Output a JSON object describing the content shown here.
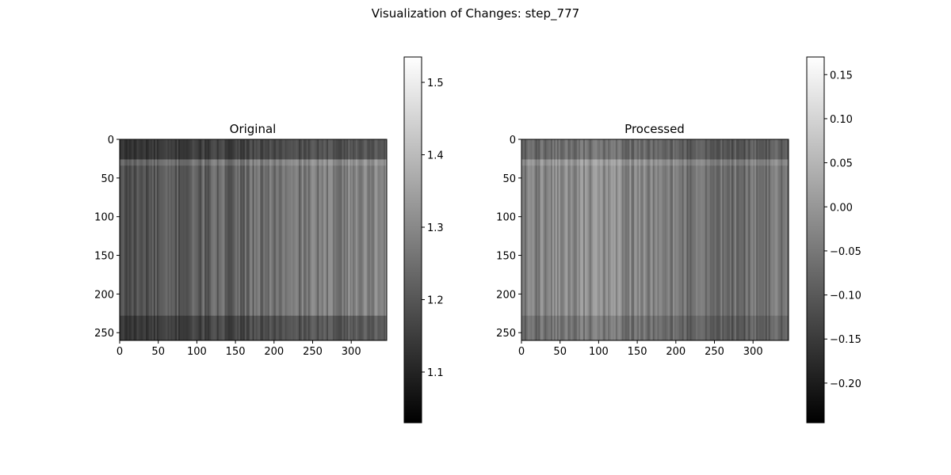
{
  "figure": {
    "title": "Visualization of Changes: step_777"
  },
  "chart_data": [
    {
      "type": "heatmap",
      "title": "Original",
      "colormap": "gray",
      "image_width": 346,
      "image_height": 260,
      "x_ticks": [
        0,
        50,
        100,
        150,
        200,
        250,
        300
      ],
      "y_ticks": [
        0,
        50,
        100,
        150,
        200,
        250
      ],
      "colorbar": {
        "min": 1.03,
        "max": 1.535,
        "ticks": [
          1.1,
          1.2,
          1.3,
          1.4,
          1.5
        ],
        "tick_labels": [
          "1.1",
          "1.2",
          "1.3",
          "1.4",
          "1.5"
        ]
      }
    },
    {
      "type": "heatmap",
      "title": "Processed",
      "colormap": "gray",
      "image_width": 346,
      "image_height": 260,
      "x_ticks": [
        0,
        50,
        100,
        150,
        200,
        250,
        300
      ],
      "y_ticks": [
        0,
        50,
        100,
        150,
        200,
        250
      ],
      "colorbar": {
        "min": -0.245,
        "max": 0.17,
        "ticks": [
          -0.2,
          -0.15,
          -0.1,
          -0.05,
          0.0,
          0.05,
          0.1,
          0.15
        ],
        "tick_labels": [
          "−0.20",
          "−0.15",
          "−0.10",
          "−0.05",
          "0.00",
          "0.05",
          "0.10",
          "0.15"
        ]
      }
    }
  ]
}
